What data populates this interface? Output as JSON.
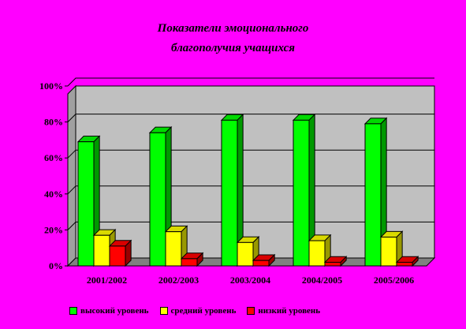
{
  "chart_data": {
    "type": "bar",
    "title_line1": "Показатели эмоционального",
    "title_line2": "благополучия учащихся",
    "categories": [
      "2001/2002",
      "2002/2003",
      "2003/2004",
      "2004/2005",
      "2005/2006"
    ],
    "series": [
      {
        "name": "высокий уровень",
        "color": "#00ff00",
        "values": [
          69,
          74,
          81,
          81,
          79
        ]
      },
      {
        "name": "средний уровень",
        "color": "#ffff00",
        "values": [
          17,
          19,
          13,
          14,
          16
        ]
      },
      {
        "name": "низкий уровень",
        "color": "#ff0000",
        "values": [
          11,
          4,
          3,
          2,
          2
        ]
      }
    ],
    "ylim": [
      0,
      100
    ],
    "yticks": [
      "0%",
      "20%",
      "40%",
      "60%",
      "80%",
      "100%"
    ],
    "grid": true,
    "legend_position": "bottom",
    "plot_background": "#c0c0c0"
  }
}
